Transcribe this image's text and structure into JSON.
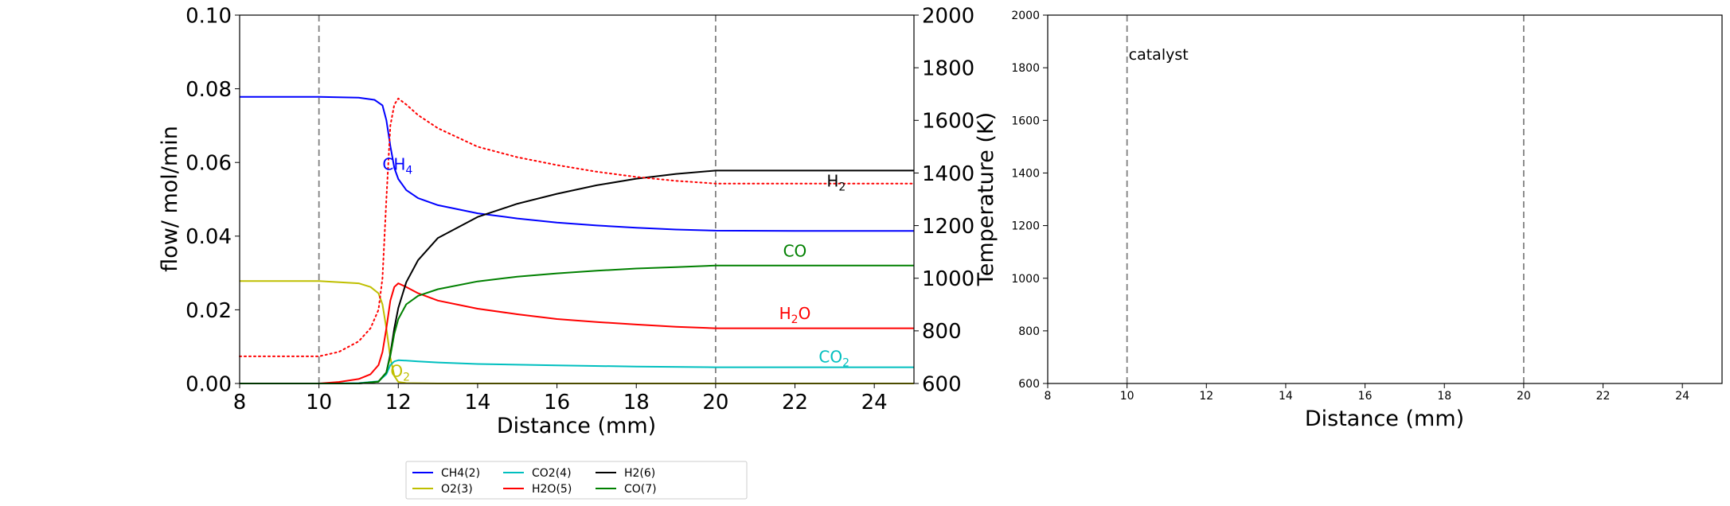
{
  "chart_data": [
    {
      "type": "line",
      "xlabel": "Distance (mm)",
      "ylabel": "flow/ mol/min",
      "y2label": "Temperature (K)",
      "xlim": [
        8,
        25
      ],
      "ylim": [
        0,
        0.1
      ],
      "y2lim": [
        600,
        2000
      ],
      "xticks": [
        "8",
        "10",
        "12",
        "14",
        "16",
        "18",
        "20",
        "22",
        "24"
      ],
      "yticks": [
        "0.00",
        "0.02",
        "0.04",
        "0.06",
        "0.08",
        "0.10"
      ],
      "y2ticks": [
        "600",
        "800",
        "1000",
        "1200",
        "1400",
        "1600",
        "1800",
        "2000"
      ],
      "vlines": [
        10,
        20
      ],
      "grid": false,
      "legend_position": "below",
      "series": [
        {
          "name": "CH4(2)",
          "color": "#0000ff",
          "x": [
            8,
            10,
            11,
            11.4,
            11.6,
            11.7,
            11.8,
            11.9,
            12,
            12.2,
            12.5,
            13,
            14,
            15,
            16,
            17,
            18,
            19,
            20,
            22,
            25
          ],
          "y": [
            0.0778,
            0.0778,
            0.0776,
            0.077,
            0.0755,
            0.0715,
            0.0645,
            0.0585,
            0.0555,
            0.0525,
            0.0503,
            0.0484,
            0.0462,
            0.0448,
            0.0437,
            0.0429,
            0.0423,
            0.0418,
            0.0415,
            0.0414,
            0.0414
          ]
        },
        {
          "name": "O2(3)",
          "color": "#bfbf00",
          "x": [
            8,
            10,
            11,
            11.3,
            11.5,
            11.6,
            11.7,
            11.8,
            11.9,
            12,
            12.2,
            13,
            25
          ],
          "y": [
            0.0278,
            0.0278,
            0.0272,
            0.0262,
            0.0245,
            0.0215,
            0.015,
            0.007,
            0.002,
            0.0004,
            0.0001,
            0,
            0
          ]
        },
        {
          "name": "CO2(4)",
          "color": "#00bfbf",
          "x": [
            8,
            10,
            11,
            11.5,
            11.7,
            11.8,
            11.9,
            12,
            12.2,
            12.5,
            13,
            14,
            16,
            18,
            20,
            25
          ],
          "y": [
            0,
            0,
            0.0001,
            0.0006,
            0.0025,
            0.005,
            0.006,
            0.0063,
            0.0062,
            0.006,
            0.0057,
            0.0053,
            0.0049,
            0.0046,
            0.0044,
            0.0044
          ]
        },
        {
          "name": "H2O(5)",
          "color": "#ff0000",
          "x": [
            8,
            10,
            10.5,
            11,
            11.3,
            11.5,
            11.6,
            11.7,
            11.8,
            11.9,
            12,
            12.2,
            12.5,
            13,
            14,
            15,
            16,
            17,
            18,
            19,
            20,
            25
          ],
          "y": [
            0,
            0,
            0.0004,
            0.0012,
            0.0025,
            0.005,
            0.0085,
            0.015,
            0.0225,
            0.0262,
            0.0272,
            0.0262,
            0.0245,
            0.0225,
            0.0203,
            0.0188,
            0.0175,
            0.0167,
            0.016,
            0.0154,
            0.015,
            0.015
          ]
        },
        {
          "name": "H2(6)",
          "color": "#000000",
          "x": [
            8,
            11,
            11.5,
            11.7,
            11.8,
            11.9,
            12,
            12.2,
            12.5,
            13,
            14,
            15,
            16,
            17,
            18,
            19,
            20,
            25
          ],
          "y": [
            0,
            0,
            0.0005,
            0.003,
            0.008,
            0.015,
            0.0205,
            0.0275,
            0.0335,
            0.0395,
            0.0452,
            0.0488,
            0.0515,
            0.0538,
            0.0556,
            0.0569,
            0.0578,
            0.0578
          ]
        },
        {
          "name": "CO(7)",
          "color": "#008000",
          "x": [
            8,
            11,
            11.5,
            11.7,
            11.8,
            11.9,
            12,
            12.2,
            12.5,
            13,
            14,
            15,
            16,
            17,
            18,
            19,
            20,
            25
          ],
          "y": [
            0,
            0,
            0.0005,
            0.003,
            0.0075,
            0.0135,
            0.0175,
            0.0215,
            0.0238,
            0.0256,
            0.0277,
            0.029,
            0.0299,
            0.0306,
            0.0312,
            0.0316,
            0.032,
            0.032
          ]
        },
        {
          "color": "#ff0000",
          "style": "dotted",
          "axis": "y2",
          "x": [
            8,
            10,
            10.5,
            11,
            11.3,
            11.5,
            11.6,
            11.7,
            11.8,
            11.9,
            12,
            12.2,
            12.5,
            13,
            14,
            15,
            16,
            17,
            18,
            19,
            20,
            25
          ],
          "y": [
            703,
            703,
            720,
            760,
            810,
            880,
            1000,
            1300,
            1580,
            1660,
            1683,
            1660,
            1620,
            1570,
            1500,
            1460,
            1430,
            1405,
            1385,
            1370,
            1360,
            1360
          ]
        }
      ],
      "annotations": [
        {
          "text": "CH",
          "sub": "4",
          "color": "#0000ff",
          "x": 11.6,
          "y": 0.058
        },
        {
          "text": "H",
          "sub": "2",
          "color": "#000000",
          "x": 22.8,
          "y": 0.0535
        },
        {
          "text": "CO",
          "sub": "",
          "color": "#008000",
          "x": 21.7,
          "y": 0.0345
        },
        {
          "text": "H",
          "sub": "2",
          "tail": "O",
          "color": "#ff0000",
          "x": 21.6,
          "y": 0.0175
        },
        {
          "text": "CO",
          "sub": "2",
          "color": "#00bfbf",
          "x": 22.6,
          "y": 0.0057
        },
        {
          "text": "O",
          "sub": "2",
          "color": "#bfbf00",
          "x": 11.8,
          "y": 0.0018
        }
      ]
    },
    {
      "type": "line",
      "xlabel": "Distance (mm)",
      "xlim": [
        8,
        25
      ],
      "ylim": [
        600,
        2000
      ],
      "xticks": [
        "8",
        "10",
        "12",
        "14",
        "16",
        "18",
        "20",
        "22",
        "24"
      ],
      "yticks": [
        "600",
        "800",
        "1000",
        "1200",
        "1400",
        "1600",
        "1800",
        "2000"
      ],
      "vlines": [
        10,
        20
      ],
      "annotations": [
        {
          "text": "catalyst",
          "x": 10,
          "y": 1830
        }
      ],
      "series": []
    }
  ]
}
